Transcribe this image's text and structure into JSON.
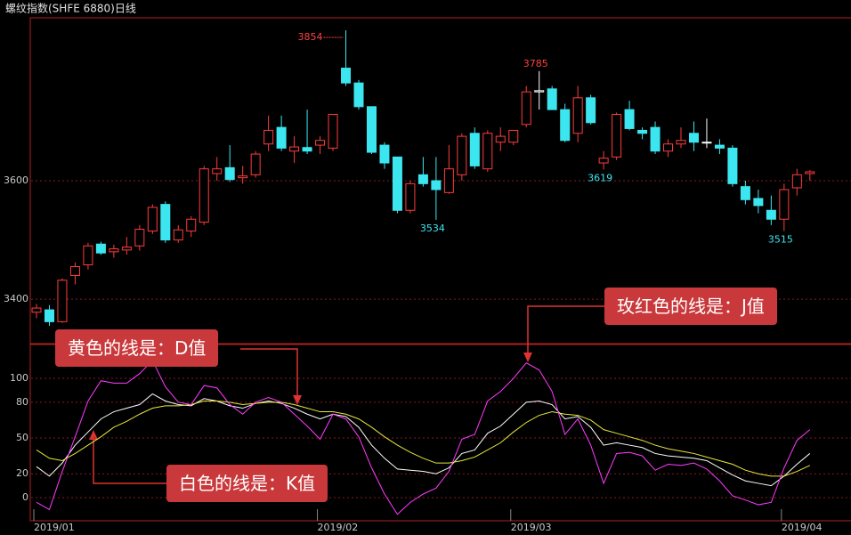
{
  "chart_data": [
    {
      "type": "candlestick",
      "title": "螺纹指数(SHFE 6880)日线",
      "open": [
        3378,
        3382,
        3362,
        3440,
        3458,
        3493,
        3480,
        3483,
        3490,
        3515,
        3560,
        3500,
        3515,
        3530,
        3612,
        3622,
        3605,
        3610,
        3662,
        3690,
        3650,
        3656,
        3660,
        3655,
        3790,
        3765,
        3725,
        3660,
        3640,
        3550,
        3610,
        3600,
        3580,
        3610,
        3680,
        3620,
        3665,
        3665,
        3695,
        3750,
        3755,
        3720,
        3680,
        3740,
        3630,
        3640,
        3720,
        3685,
        3690,
        3650,
        3662,
        3680,
        3665,
        3660,
        3655,
        3590,
        3570,
        3550,
        3535,
        3588,
        3612
      ],
      "high": [
        3392,
        3390,
        3435,
        3462,
        3495,
        3497,
        3492,
        3505,
        3525,
        3560,
        3565,
        3525,
        3540,
        3625,
        3640,
        3660,
        3625,
        3650,
        3710,
        3710,
        3675,
        3720,
        3675,
        3710,
        3854,
        3770,
        3725,
        3665,
        3640,
        3600,
        3640,
        3640,
        3660,
        3680,
        3690,
        3685,
        3690,
        3685,
        3760,
        3785,
        3760,
        3730,
        3760,
        3745,
        3650,
        3715,
        3735,
        3690,
        3700,
        3670,
        3690,
        3700,
        3705,
        3670,
        3660,
        3600,
        3585,
        3575,
        3595,
        3620,
        3618
      ],
      "low": [
        3368,
        3355,
        3360,
        3425,
        3450,
        3475,
        3470,
        3475,
        3482,
        3510,
        3495,
        3495,
        3505,
        3525,
        3600,
        3598,
        3595,
        3605,
        3650,
        3650,
        3630,
        3645,
        3645,
        3650,
        3760,
        3720,
        3645,
        3620,
        3545,
        3545,
        3590,
        3534,
        3578,
        3600,
        3620,
        3615,
        3650,
        3660,
        3690,
        3720,
        3720,
        3665,
        3665,
        3695,
        3619,
        3635,
        3685,
        3670,
        3645,
        3640,
        3655,
        3650,
        3655,
        3645,
        3590,
        3560,
        3545,
        3525,
        3515,
        3575,
        3600
      ],
      "close": [
        3385,
        3362,
        3432,
        3455,
        3490,
        3478,
        3485,
        3488,
        3518,
        3555,
        3500,
        3517,
        3535,
        3620,
        3620,
        3602,
        3608,
        3645,
        3685,
        3655,
        3657,
        3650,
        3668,
        3712,
        3765,
        3725,
        3648,
        3630,
        3550,
        3595,
        3595,
        3585,
        3620,
        3675,
        3625,
        3680,
        3675,
        3685,
        3750,
        3752,
        3720,
        3668,
        3740,
        3698,
        3638,
        3712,
        3688,
        3680,
        3650,
        3662,
        3668,
        3665,
        3665,
        3655,
        3595,
        3568,
        3558,
        3535,
        3585,
        3610,
        3615
      ],
      "up_color": "#ff3c3c",
      "down_color": "#3ce6f0",
      "extremes": [
        3854,
        3785,
        3534,
        3619,
        3515
      ],
      "ylim": [
        3325,
        3875
      ],
      "yticks": [
        3400,
        3600
      ],
      "grid": true
    },
    {
      "type": "line",
      "categories": [
        "2019/01",
        null,
        null,
        null,
        null,
        null,
        null,
        null,
        null,
        null,
        null,
        null,
        null,
        null,
        null,
        null,
        null,
        null,
        null,
        null,
        null,
        null,
        "2019/02",
        null,
        null,
        null,
        null,
        null,
        null,
        null,
        null,
        null,
        null,
        null,
        null,
        null,
        null,
        "2019/03",
        null,
        null,
        null,
        null,
        null,
        null,
        null,
        null,
        null,
        null,
        null,
        null,
        null,
        null,
        null,
        null,
        null,
        null,
        null,
        null,
        "2019/04",
        null,
        null
      ],
      "series": [
        {
          "color": "#ffffff",
          "values": [
            26,
            18,
            29,
            44,
            55,
            66,
            72,
            75,
            78,
            87,
            81,
            78,
            77,
            83,
            81,
            77,
            75,
            79,
            81,
            79,
            75,
            70,
            66,
            70,
            68,
            59,
            44,
            33,
            24,
            23,
            22,
            20,
            25,
            37,
            40,
            54,
            60,
            70,
            80,
            81,
            78,
            66,
            68,
            59,
            44,
            46,
            44,
            42,
            37,
            35,
            34,
            33,
            31,
            25,
            19,
            14,
            12,
            10,
            18,
            28,
            37
          ]
        },
        {
          "color": "#e8e83c",
          "values": [
            40,
            33,
            31,
            37,
            44,
            51,
            59,
            64,
            70,
            75,
            77,
            77,
            78,
            81,
            81,
            80,
            78,
            79,
            80,
            80,
            78,
            75,
            72,
            72,
            70,
            66,
            59,
            51,
            44,
            38,
            33,
            29,
            29,
            31,
            34,
            40,
            46,
            55,
            63,
            69,
            72,
            70,
            69,
            65,
            57,
            54,
            51,
            48,
            44,
            41,
            39,
            37,
            34,
            31,
            28,
            23,
            20,
            18,
            18,
            22,
            27
          ]
        },
        {
          "color": "#ff3cff",
          "values": [
            -4,
            -10,
            22,
            51,
            81,
            98,
            96,
            96,
            104,
            115,
            93,
            80,
            78,
            94,
            92,
            78,
            70,
            80,
            84,
            80,
            70,
            60,
            49,
            70,
            66,
            51,
            25,
            3,
            -14,
            -4,
            3,
            8,
            22,
            49,
            53,
            81,
            89,
            100,
            113,
            107,
            89,
            53,
            66,
            44,
            12,
            37,
            38,
            35,
            23,
            28,
            27,
            29,
            24,
            14,
            1.5,
            -2,
            -6,
            -4,
            25,
            48,
            57
          ]
        }
      ],
      "callouts": [
        "黄色的线是：D值",
        "白色的线是：K值",
        "玫红色的线是：J值"
      ],
      "ylim": [
        -19.4,
        128.4
      ],
      "yticks": [
        100,
        80,
        50,
        20,
        0
      ],
      "grid": true
    }
  ]
}
